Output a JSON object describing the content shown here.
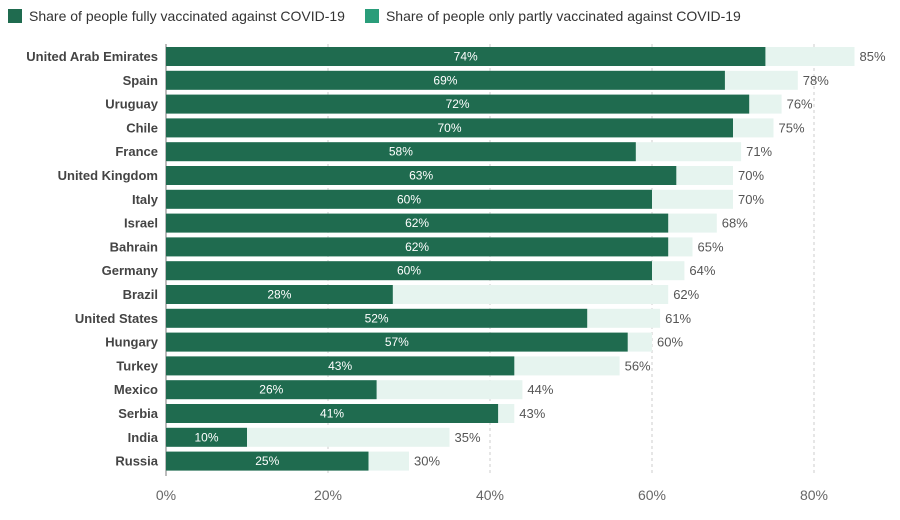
{
  "colors": {
    "full": "#1f6b4f",
    "partial": "#e6f4ef",
    "partial_legend": "#2a9d7a",
    "grid": "#cccccc",
    "zero_axis": "#7a7a7a"
  },
  "legend": [
    {
      "label": "Share of people fully vaccinated against COVID-19",
      "color_key": "full"
    },
    {
      "label": "Share of people only partly vaccinated against COVID-19",
      "color_key": "partial_legend"
    }
  ],
  "chart_data": {
    "type": "bar",
    "orientation": "horizontal",
    "stacked": true,
    "categories": [
      "United Arab Emirates",
      "Spain",
      "Uruguay",
      "Chile",
      "France",
      "United Kingdom",
      "Italy",
      "Israel",
      "Bahrain",
      "Germany",
      "Brazil",
      "United States",
      "Hungary",
      "Turkey",
      "Mexico",
      "Serbia",
      "India",
      "Russia"
    ],
    "series": [
      {
        "name": "Share of people fully vaccinated against COVID-19",
        "values": [
          74,
          69,
          72,
          70,
          58,
          63,
          60,
          62,
          62,
          60,
          28,
          52,
          57,
          43,
          26,
          41,
          10,
          25
        ]
      },
      {
        "name": "Share of people only partly vaccinated against COVID-19",
        "values": [
          11,
          9,
          4,
          5,
          13,
          7,
          10,
          6,
          3,
          4,
          34,
          9,
          3,
          13,
          18,
          2,
          25,
          5
        ]
      }
    ],
    "totals": [
      85,
      78,
      76,
      75,
      71,
      70,
      70,
      68,
      65,
      64,
      62,
      61,
      60,
      56,
      44,
      43,
      35,
      30
    ],
    "x_ticks": [
      "0%",
      "20%",
      "40%",
      "60%",
      "80%"
    ],
    "xlim": [
      0,
      85
    ],
    "value_suffix": "%",
    "grid": true,
    "legend_position": "top-left"
  }
}
